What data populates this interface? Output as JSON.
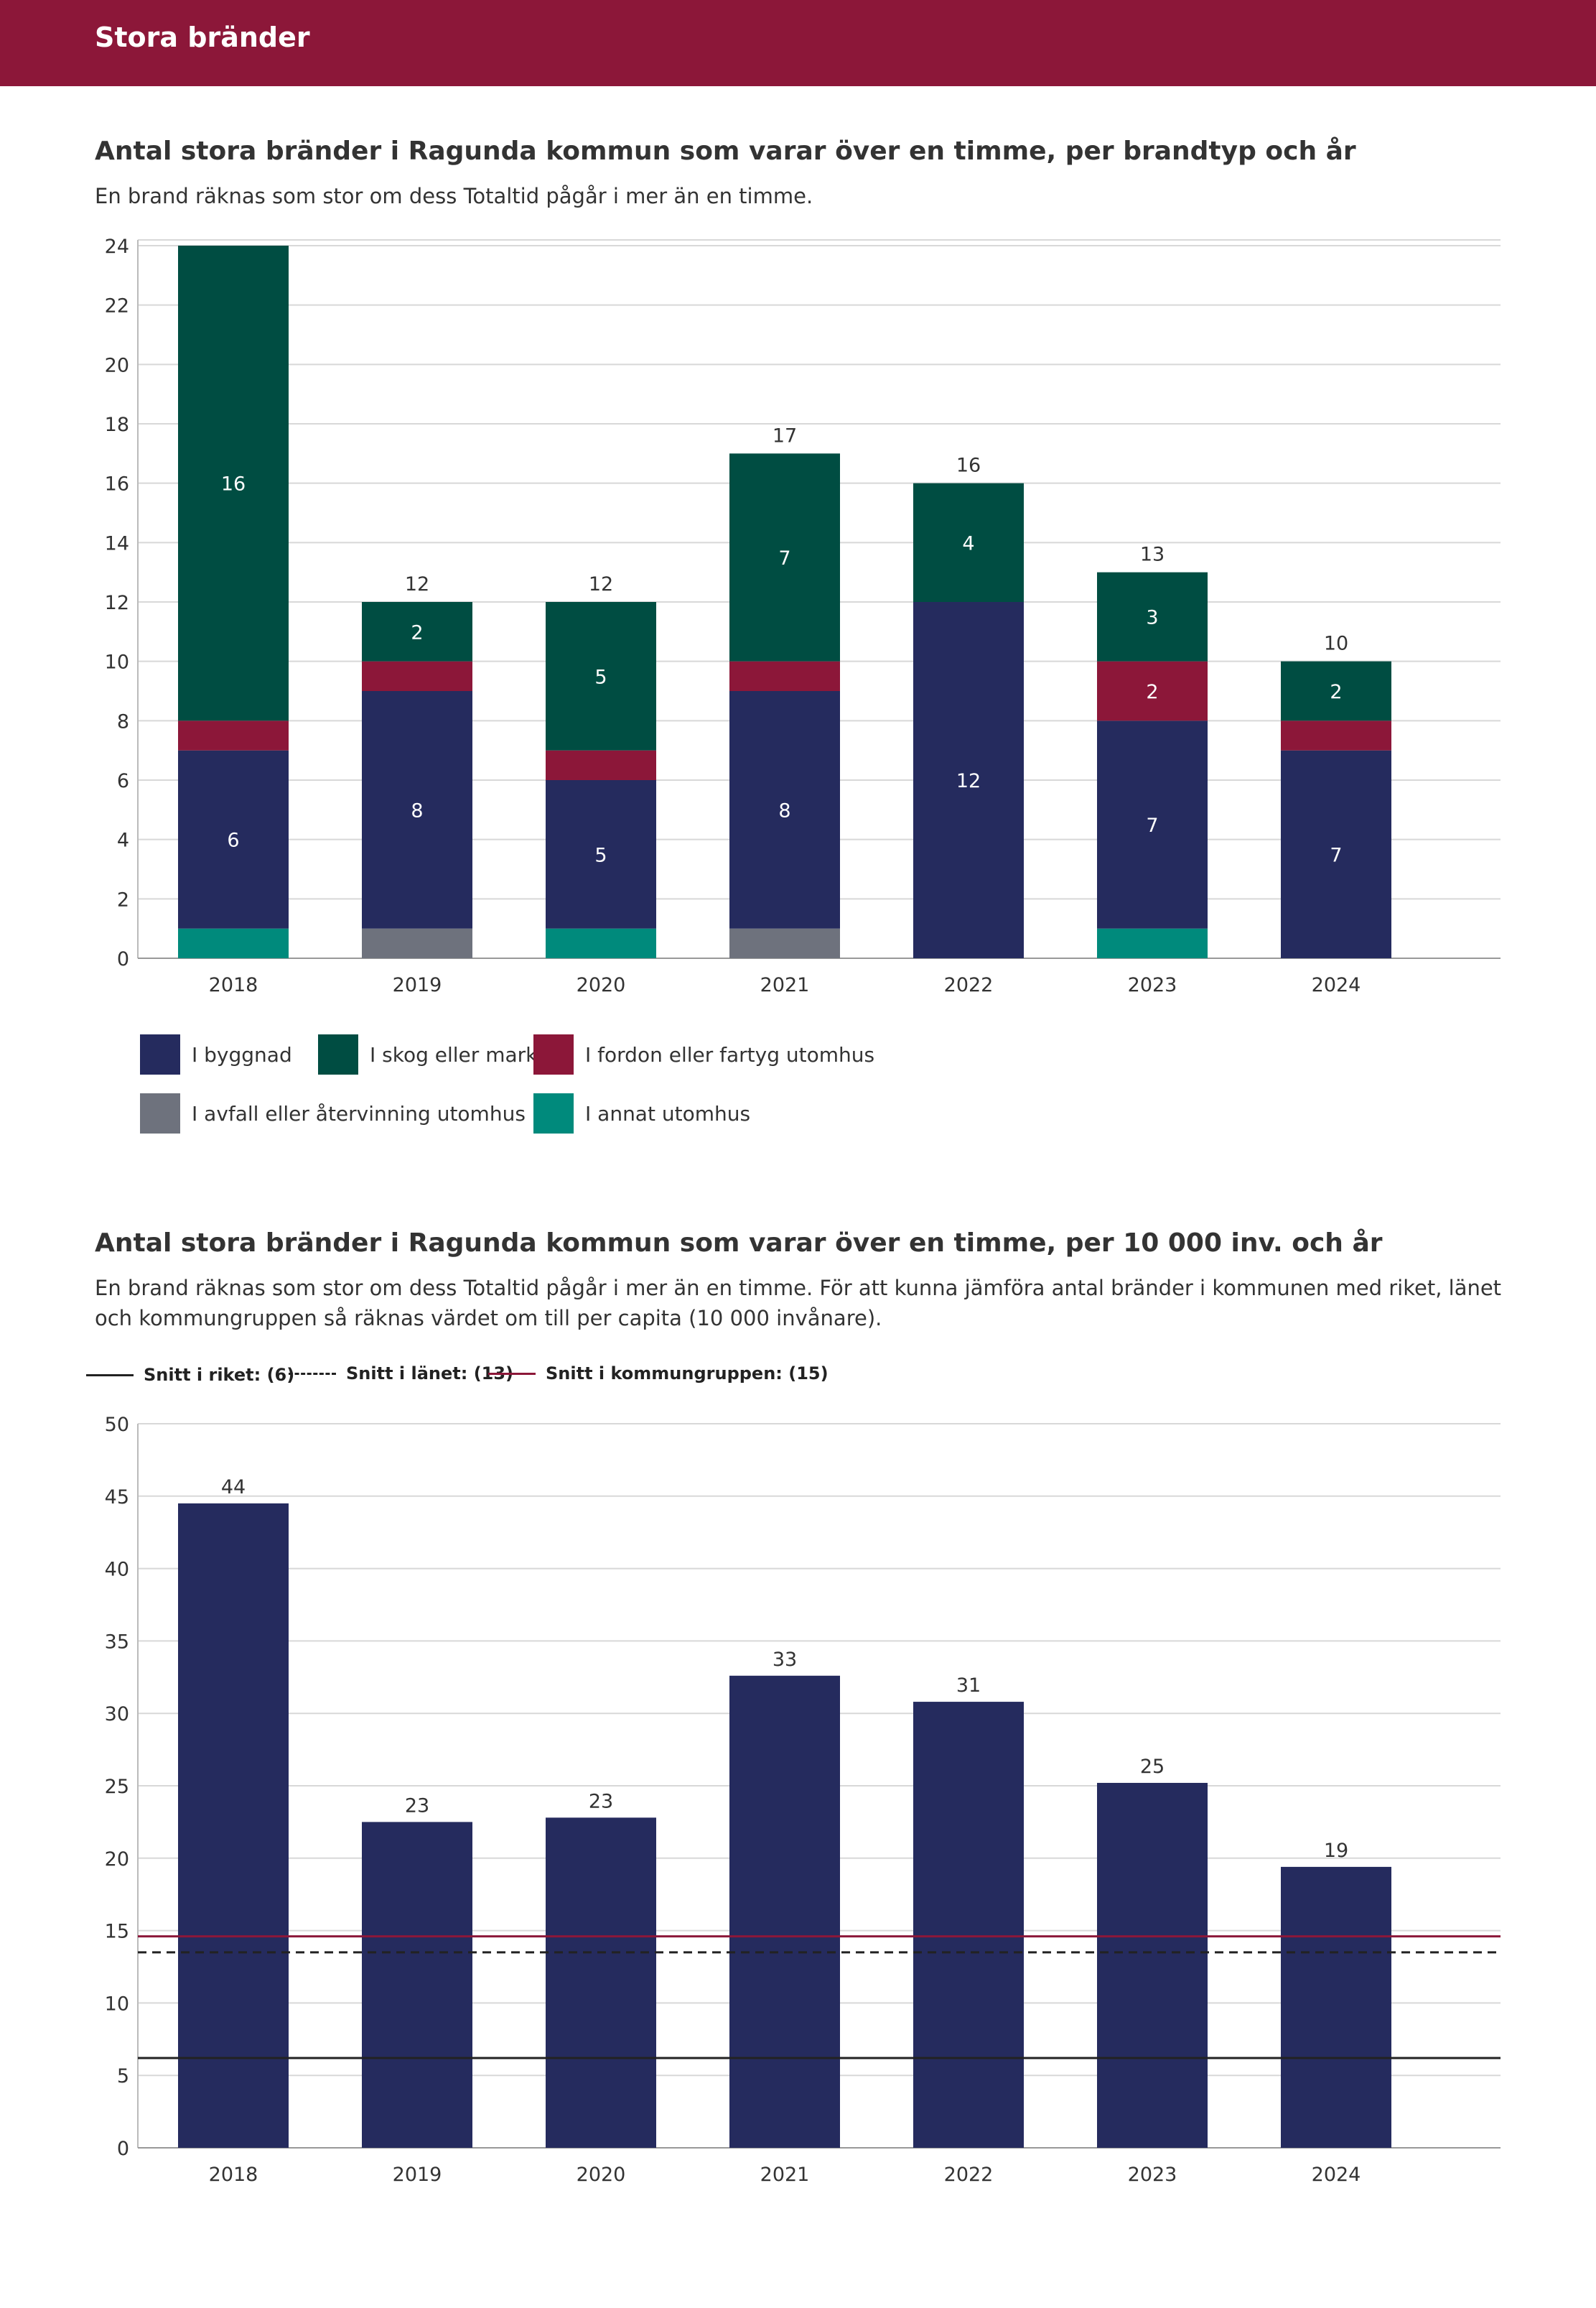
{
  "header": {
    "title": "Stora bränder"
  },
  "chart1": {
    "title": "Antal stora bränder i Ragunda kommun som varar över en timme, per brandtyp och år",
    "subtitle": "En brand räknas som stor om dess Totaltid pågår i mer än en timme."
  },
  "chart2": {
    "title": "Antal stora bränder i Ragunda kommun som varar över en timme, per 10 000 inv. och år",
    "subtitle": "En brand räknas som stor om dess Totaltid pågår i mer än en timme. För att kunna jämföra antal bränder i kommunen med riket, länet och kommungruppen så räknas värdet om till per capita (10 000 invånare)."
  },
  "chart_data": [
    {
      "type": "bar",
      "stacked": true,
      "title": "Antal stora bränder i Ragunda kommun som varar över en timme, per brandtyp och år",
      "categories": [
        "2018",
        "2019",
        "2020",
        "2021",
        "2022",
        "2023",
        "2024"
      ],
      "ylim": [
        0,
        24
      ],
      "yticks": [
        0,
        2,
        4,
        6,
        8,
        10,
        12,
        14,
        16,
        18,
        20,
        22,
        24
      ],
      "grid": true,
      "legend_position": "bottom",
      "series": [
        {
          "name": "I annat utomhus",
          "color": "#008a7c",
          "values": [
            1,
            0,
            1,
            0,
            0,
            1,
            0
          ]
        },
        {
          "name": "I avfall eller återvinning utomhus",
          "color": "#6e727d",
          "values": [
            0,
            1,
            0,
            1,
            0,
            0,
            0
          ]
        },
        {
          "name": "I byggnad",
          "color": "#252b5e",
          "values": [
            6,
            8,
            5,
            8,
            12,
            7,
            7
          ]
        },
        {
          "name": "I fordon eller fartyg utomhus",
          "color": "#8c1739",
          "values": [
            1,
            1,
            1,
            1,
            0,
            2,
            1
          ]
        },
        {
          "name": "I skog eller mark",
          "color": "#004d42",
          "values": [
            16,
            2,
            5,
            7,
            4,
            3,
            2
          ]
        }
      ],
      "totals": [
        null,
        "12",
        "12",
        "17",
        "16",
        "13",
        "10"
      ],
      "legend": [
        {
          "name": "I byggnad",
          "color": "#252b5e"
        },
        {
          "name": "I skog eller mark",
          "color": "#004d42"
        },
        {
          "name": "I fordon eller fartyg utomhus",
          "color": "#8c1739"
        },
        {
          "name": "I avfall eller återvinning utomhus",
          "color": "#6e727d"
        },
        {
          "name": "I annat utomhus",
          "color": "#008a7c"
        }
      ]
    },
    {
      "type": "bar",
      "title": "Antal stora bränder i Ragunda kommun som varar över en timme, per 10 000 inv. och år",
      "categories": [
        "2018",
        "2019",
        "2020",
        "2021",
        "2022",
        "2023",
        "2024"
      ],
      "values": [
        44.5,
        22.5,
        22.8,
        32.6,
        30.8,
        25.2,
        19.4
      ],
      "value_labels": [
        "44",
        "23",
        "23",
        "33",
        "31",
        "25",
        "19"
      ],
      "bar_color": "#252b5e",
      "ylim": [
        0,
        50
      ],
      "yticks": [
        0,
        5,
        10,
        15,
        20,
        25,
        30,
        35,
        40,
        45,
        50
      ],
      "grid": true,
      "reference_lines": [
        {
          "name": "Snitt i riket: (6)",
          "value": 6.2,
          "style": "solid",
          "color": "#222222"
        },
        {
          "name": "Snitt i länet: (13)",
          "value": 13.5,
          "style": "dashed",
          "color": "#222222"
        },
        {
          "name": "Snitt i kommungruppen: (15)",
          "value": 14.6,
          "style": "solid",
          "color": "#8c1739"
        }
      ]
    }
  ]
}
